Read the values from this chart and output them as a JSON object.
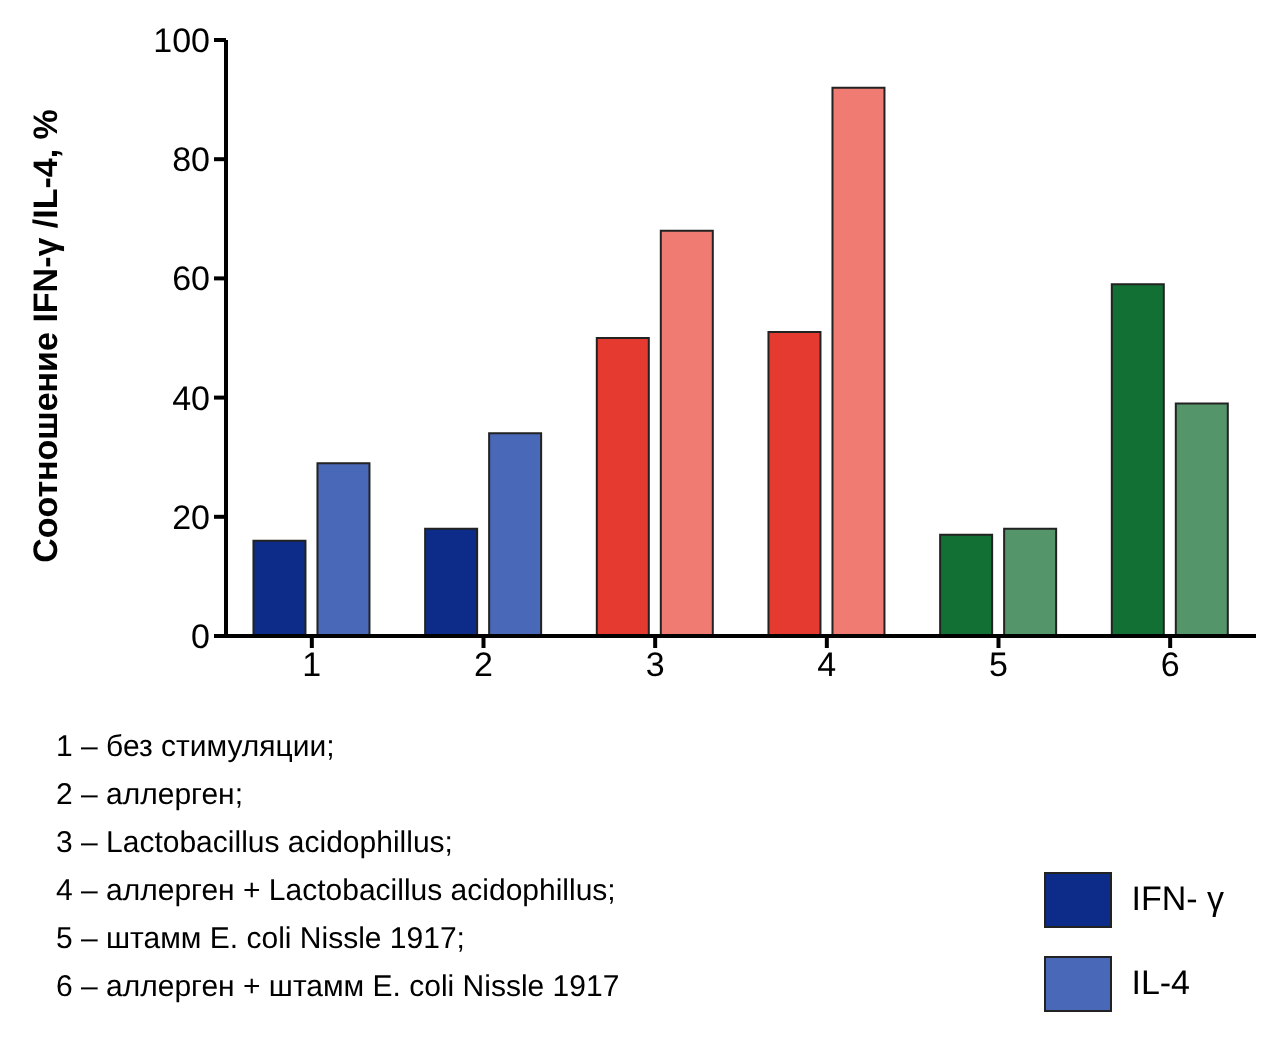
{
  "chart_data": {
    "type": "bar",
    "ylabel": "Соотношение IFN-γ /IL-4, %",
    "categories": [
      "1",
      "2",
      "3",
      "4",
      "5",
      "6"
    ],
    "series": [
      {
        "name": "IFN- γ",
        "color": "#0d2c8a",
        "colors": [
          "#0d2c8a",
          "#0d2c8a",
          "#e53a2f",
          "#e53a2f",
          "#127034",
          "#127034"
        ],
        "values": [
          16,
          18,
          50,
          51,
          17,
          59
        ]
      },
      {
        "name": "IL-4",
        "color": "#4a68b8",
        "colors": [
          "#4a68b8",
          "#4a68b8",
          "#f07b72",
          "#f07b72",
          "#55956a",
          "#55956a"
        ],
        "values": [
          29,
          34,
          68,
          92,
          18,
          39
        ]
      }
    ],
    "ylim": [
      0,
      100
    ],
    "yticks": [
      0,
      20,
      40,
      60,
      80,
      100
    ],
    "grid": false,
    "legend": "bottom right",
    "annotations": [
      "1 – без стимуляции;",
      "2 – аллерген;",
      "3 – Lactobacillus acidophillus;",
      "4 – аллерген + Lactobacillus acidophillus;",
      "5 – штамм E. coli Nissle 1917;",
      "6 – аллерген + штамм E. coli Nissle 1917"
    ]
  }
}
